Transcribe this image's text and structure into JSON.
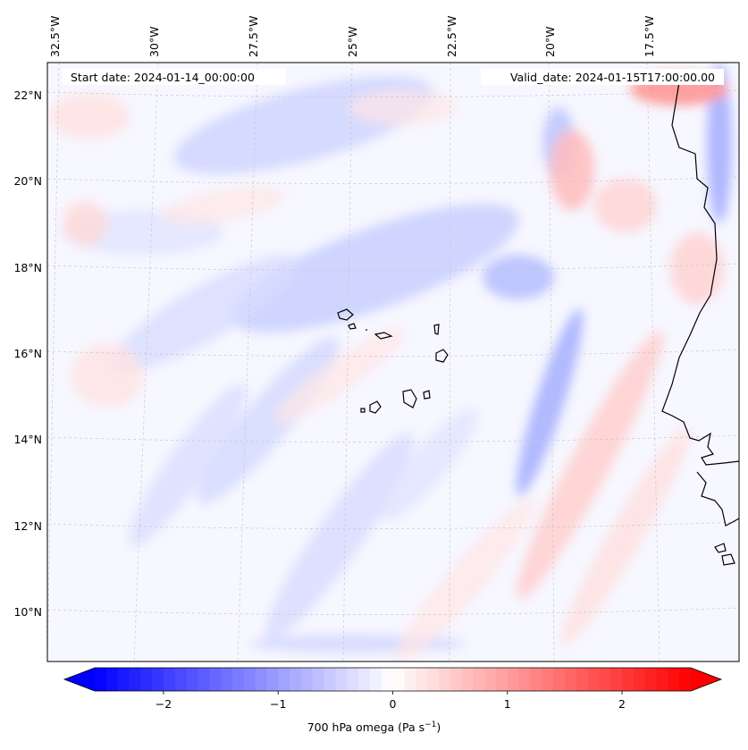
{
  "map": {
    "start_label": "Start date: 2024-01-14_00:00:00",
    "valid_label": "Valid_date: 2024-01-15T17:00:00.00",
    "lon_ticks": [
      "32.5°W",
      "30°W",
      "27.5°W",
      "25°W",
      "22.5°W",
      "20°W",
      "17.5°W"
    ],
    "lat_ticks": [
      "22°N",
      "20°N",
      "18°N",
      "16°N",
      "14°N",
      "12°N",
      "10°N"
    ],
    "gridlines": "dashed",
    "coastline_color": "#000000"
  },
  "colorbar": {
    "colormap": "bwr",
    "min_color": "#0000ff",
    "mid_color": "#ffffff",
    "max_color": "#ff0000",
    "range": [
      -2.6,
      2.6
    ],
    "extend": "both",
    "ticks": [
      "−2",
      "−1",
      "0",
      "1",
      "2"
    ],
    "tick_values": [
      -2,
      -1,
      0,
      1,
      2
    ],
    "label_main": "700 hPa omega (Pa s",
    "label_sup": "−1",
    "label_close": ")"
  }
}
